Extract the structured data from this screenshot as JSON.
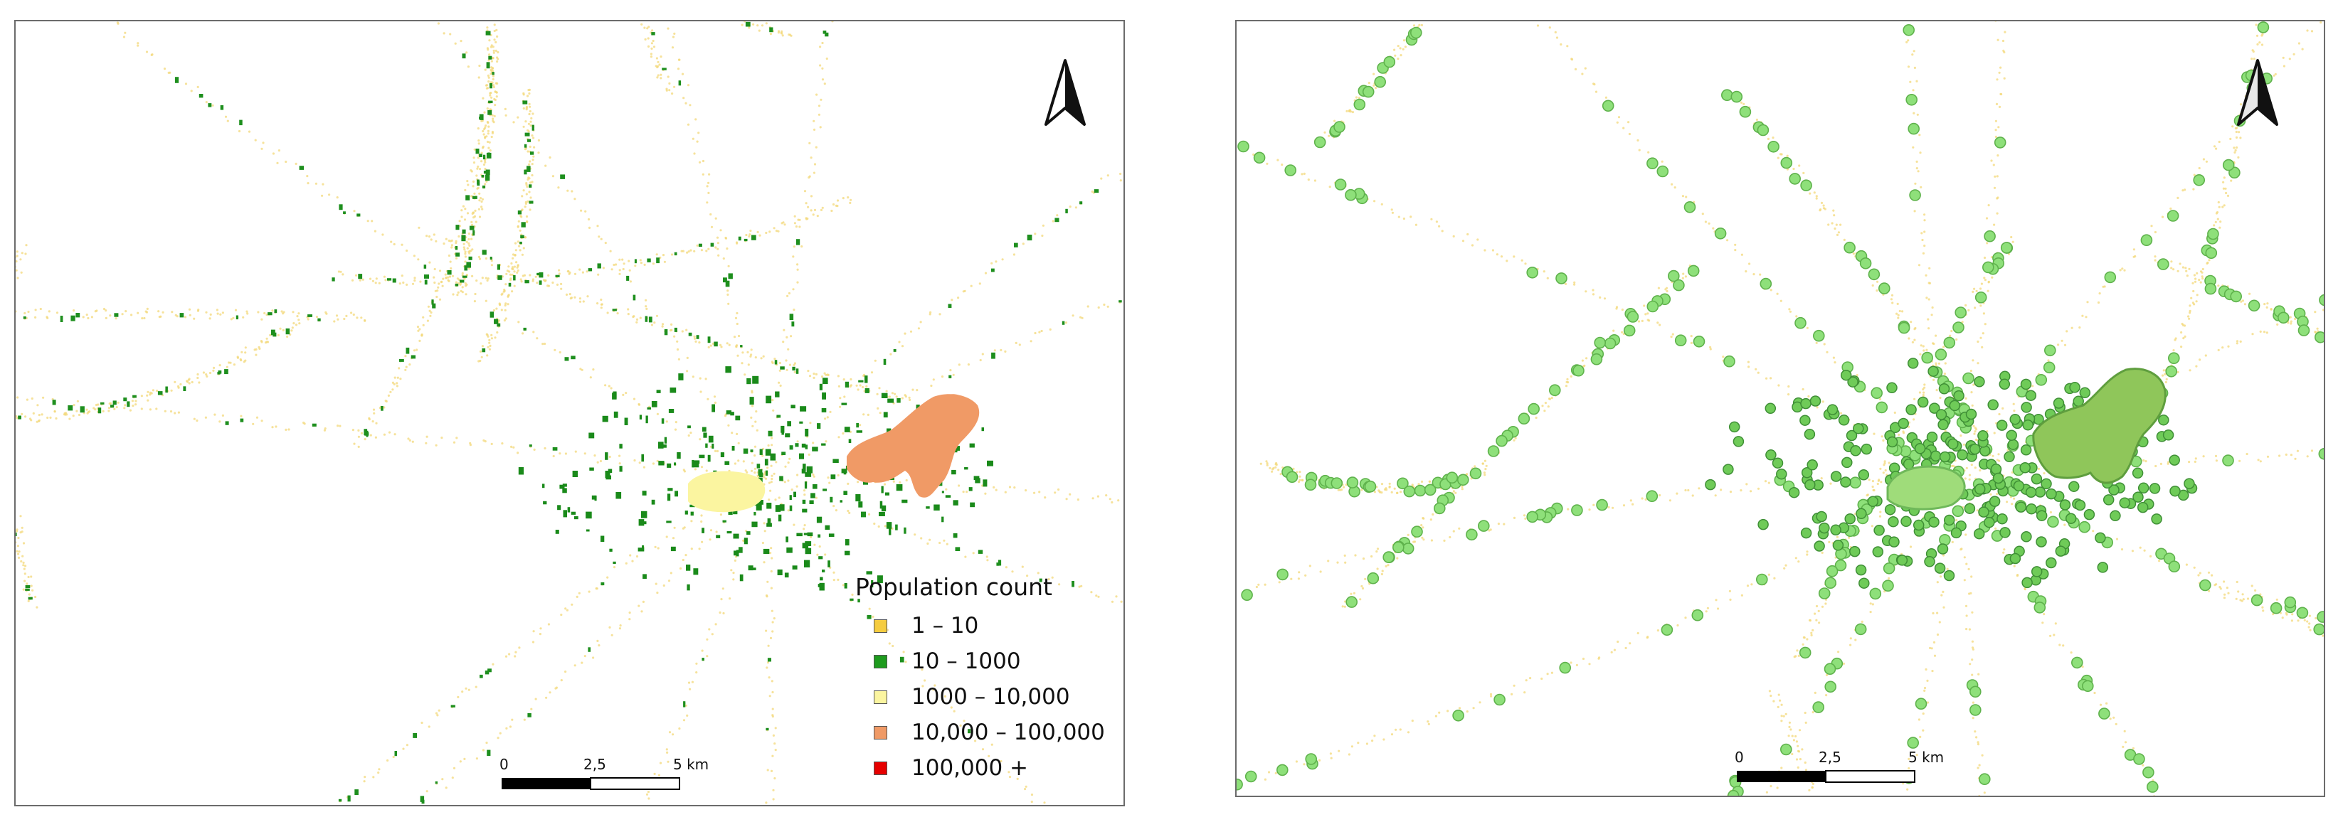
{
  "maps": {
    "left": {
      "scalebar": {
        "labels": [
          "0",
          "2,5",
          "5 km"
        ]
      },
      "legend": {
        "title": "Population count",
        "items": [
          {
            "label": "1 – 10",
            "color": "#f5cc3f"
          },
          {
            "label": "10 – 1000",
            "color": "#1e9b1e"
          },
          {
            "label": "1000 – 10,000",
            "color": "#fbf5a0"
          },
          {
            "label": "10,000 – 100,000",
            "color": "#f09a66"
          },
          {
            "label": "100,000 +",
            "color": "#e60000"
          }
        ]
      },
      "north_arrow_icon": "north-arrow-icon"
    },
    "right": {
      "scalebar": {
        "labels": [
          "0",
          "2,5",
          "5 km"
        ]
      },
      "north_arrow_icon": "north-arrow-icon",
      "settlement_color": "#7fd86a"
    }
  }
}
